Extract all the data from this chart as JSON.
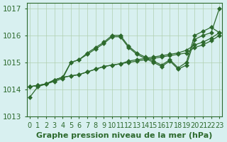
{
  "title": "Graphe pression niveau de la mer (hPa)",
  "xlabel": "Graphe pression niveau de la mer (hPa)",
  "hours": [
    0,
    1,
    2,
    3,
    4,
    5,
    6,
    7,
    8,
    9,
    10,
    11,
    12,
    13,
    14,
    15,
    16,
    17,
    18,
    19,
    20,
    21,
    22,
    23
  ],
  "series": [
    [
      1013.7,
      1014.1,
      1014.2,
      1014.3,
      1014.4,
      1015.0,
      1015.1,
      1015.3,
      1015.5,
      1015.7,
      1015.95,
      1015.95,
      1015.55,
      1015.3,
      1015.15,
      1015.0,
      1014.85,
      1015.05,
      1014.75,
      1014.9,
      1015.85,
      1016.0,
      1016.1,
      1017.0
    ],
    [
      1014.1,
      1014.15,
      1014.2,
      1014.35,
      1014.45,
      1015.0,
      1015.1,
      1015.35,
      1015.55,
      1015.75,
      1016.0,
      1016.0,
      1015.6,
      1015.35,
      1015.2,
      1015.05,
      1014.9,
      1015.1,
      1014.8,
      1015.0,
      1016.0,
      1016.15,
      1016.3,
      1016.1
    ],
    [
      1014.1,
      1014.15,
      1014.2,
      1014.35,
      1014.45,
      1014.5,
      1014.55,
      1014.65,
      1014.75,
      1014.85,
      1014.9,
      1014.95,
      1015.0,
      1015.05,
      1015.1,
      1015.15,
      1015.2,
      1015.25,
      1015.3,
      1015.35,
      1015.55,
      1015.65,
      1015.8,
      1016.0
    ],
    [
      1014.1,
      1014.15,
      1014.2,
      1014.35,
      1014.45,
      1014.5,
      1014.55,
      1014.65,
      1014.75,
      1014.85,
      1014.9,
      1014.95,
      1015.05,
      1015.1,
      1015.15,
      1015.2,
      1015.25,
      1015.3,
      1015.35,
      1015.45,
      1015.65,
      1015.75,
      1015.9,
      1016.1
    ]
  ],
  "line_color": "#2d6a2d",
  "marker": "D",
  "marker_size": 3,
  "bg_color": "#d8f0f0",
  "grid_color": "#b0d0b0",
  "yticks": [
    1013,
    1014,
    1015,
    1016,
    1017
  ],
  "ylim": [
    1013.5,
    1017.2
  ],
  "xlim": [
    -0.3,
    23.3
  ],
  "label_fontsize": 7.5,
  "title_fontsize": 8
}
